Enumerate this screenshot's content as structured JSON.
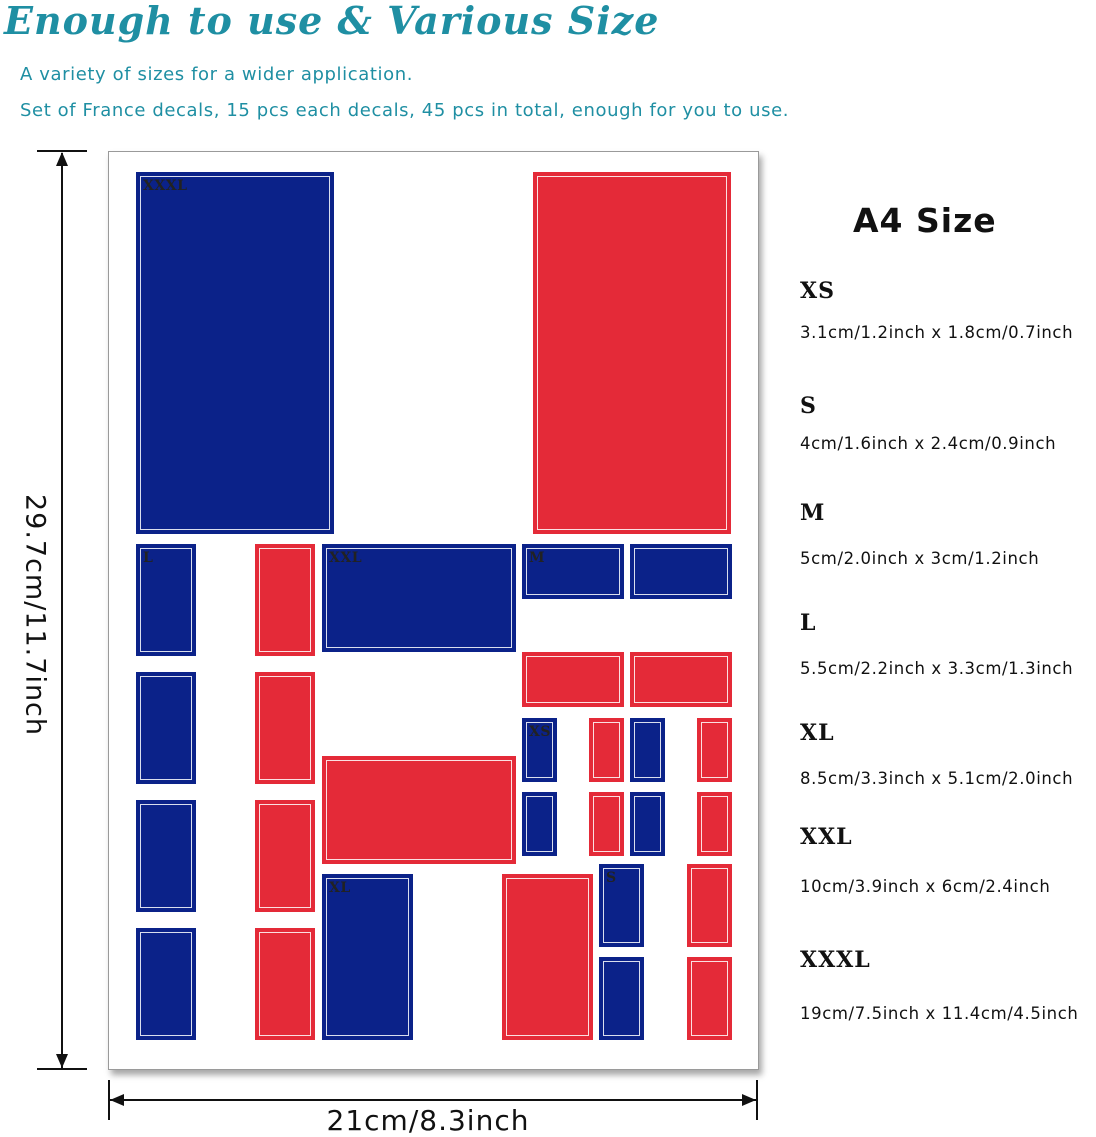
{
  "header": {
    "title": "Enough to use & Various Size",
    "line1": "A variety of sizes for a wider application.",
    "line2": "Set of France decals, 15 pcs each decals, 45 pcs in total, enough for you to use."
  },
  "dimensions": {
    "height": "29.7cm/11.7inch",
    "width": "21cm/8.3inch"
  },
  "sheet_labels": {
    "xxxl": "XXXL",
    "xxl": "XXL",
    "xl": "XL",
    "l": "L",
    "m": "M",
    "s": "S",
    "xs": "XS"
  },
  "size_chart": {
    "title": "A4 Size",
    "sizes": [
      {
        "name": "XS",
        "dims": "3.1cm/1.2inch x 1.8cm/0.7inch"
      },
      {
        "name": "S",
        "dims": "4cm/1.6inch x 2.4cm/0.9inch"
      },
      {
        "name": "M",
        "dims": "5cm/2.0inch x 3cm/1.2inch"
      },
      {
        "name": "L",
        "dims": "5.5cm/2.2inch x 3.3cm/1.3inch"
      },
      {
        "name": "XL",
        "dims": "8.5cm/3.3inch x 5.1cm/2.0inch"
      },
      {
        "name": "XXL",
        "dims": "10cm/3.9inch x 6cm/2.4inch"
      },
      {
        "name": "XXXL",
        "dims": "19cm/7.5inch x 11.4cm/4.5inch"
      }
    ]
  },
  "colors": {
    "blue": "#0b2289",
    "red": "#e42a38",
    "accent": "#1f8fa3"
  }
}
